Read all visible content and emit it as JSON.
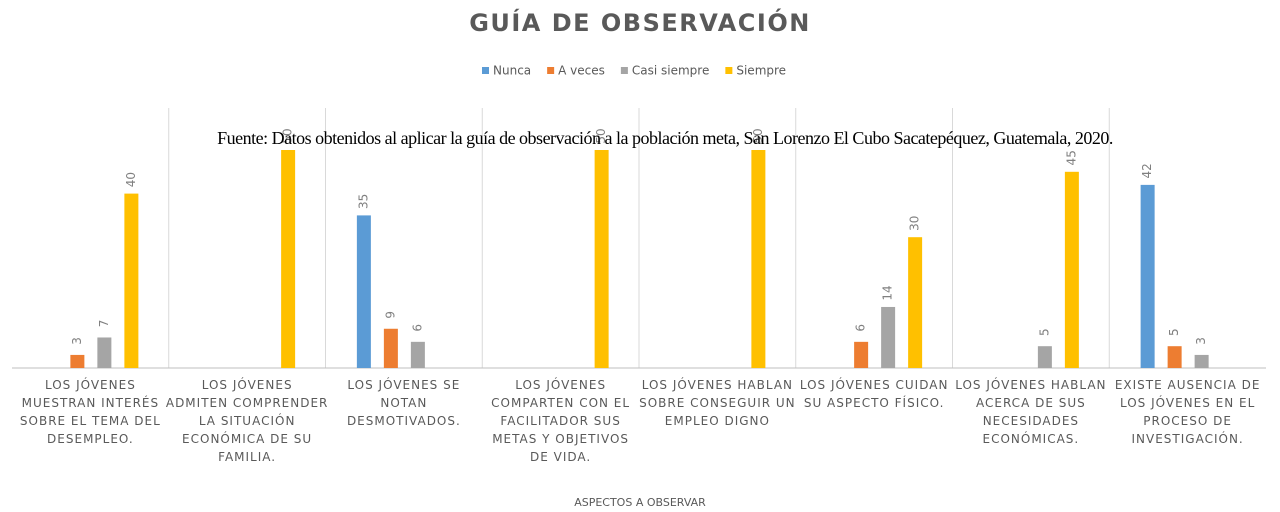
{
  "chart_data": {
    "type": "bar",
    "title": "GUÍA DE OBSERVACIÓN",
    "source": "Fuente: Datos obtenidos al aplicar la guía de observación a la población meta, San Lorenzo El Cubo Sacatepéquez, Guatemala, 2020.",
    "x_label": "ASPECTOS A OBSERVAR",
    "categories": [
      "LOS JÓVENES MUESTRAN INTERÉS SOBRE EL TEMA DEL DESEMPLEO.",
      "LOS JÓVENES ADMITEN COMPRENDER LA SITUACIÓN ECONÓMICA DE SU FAMILIA.",
      "LOS JÓVENES SE NOTAN DESMOTIVADOS.",
      "LOS JÓVENES COMPARTEN CON EL FACILITADOR SUS METAS Y OBJETIVOS DE VIDA.",
      "LOS JÓVENES HABLAN SOBRE CONSEGUIR UN EMPLEO DIGNO",
      "LOS JÓVENES CUIDAN SU ASPECTO FÍSICO.",
      "LOS JÓVENES HABLAN ACERCA DE SUS NECESIDADES ECONÓMICAS.",
      "EXISTE AUSENCIA DE LOS JÓVENES EN EL PROCESO DE INVESTIGACIÓN."
    ],
    "series": [
      {
        "name": "Nunca",
        "color": "#5b9bd5",
        "values": [
          null,
          null,
          35,
          null,
          null,
          null,
          null,
          42
        ]
      },
      {
        "name": "A veces",
        "color": "#ed7d31",
        "values": [
          3,
          null,
          9,
          null,
          null,
          6,
          null,
          5
        ]
      },
      {
        "name": "Casi siempre",
        "color": "#a5a5a5",
        "values": [
          7,
          null,
          6,
          null,
          null,
          14,
          5,
          3
        ]
      },
      {
        "name": "Siempre",
        "color": "#ffc000",
        "values": [
          40,
          50,
          null,
          50,
          50,
          30,
          45,
          null
        ]
      }
    ],
    "ylim": [
      0,
      50
    ]
  }
}
